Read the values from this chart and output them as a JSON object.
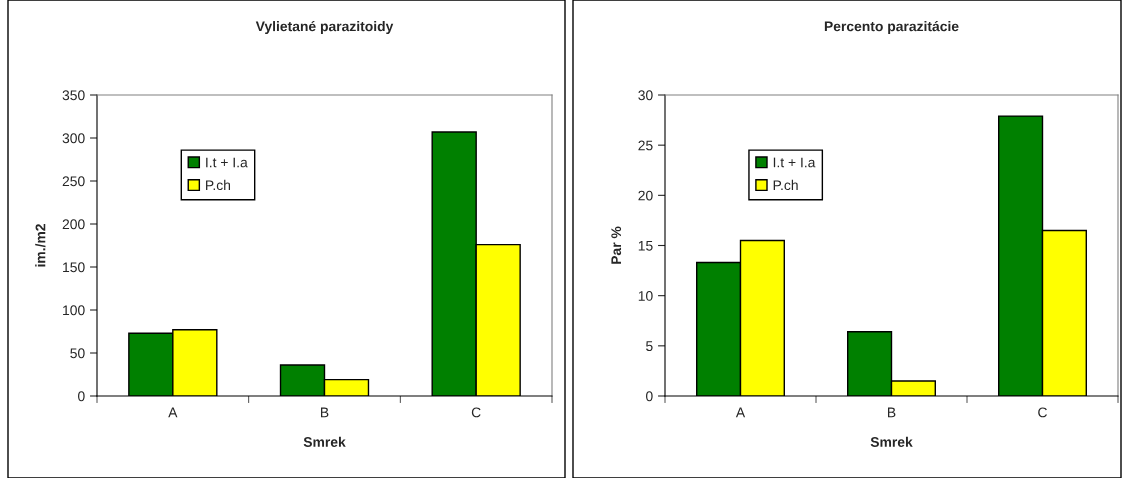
{
  "chart_data": [
    {
      "type": "bar",
      "title": "Vylietané parazitoidy",
      "xlabel": "Smrek",
      "ylabel": "im./m2",
      "categories": [
        "A",
        "B",
        "C"
      ],
      "series": [
        {
          "name": "I.t + I.a",
          "color": "#008000",
          "values": [
            73,
            36,
            307
          ]
        },
        {
          "name": "P.ch",
          "color": "#ffff00",
          "values": [
            77,
            19,
            176
          ]
        }
      ],
      "ylim": [
        0,
        350
      ],
      "yticks": [
        0,
        50,
        100,
        150,
        200,
        250,
        300,
        350
      ],
      "grid": false,
      "legend": "top left"
    },
    {
      "type": "bar",
      "title": "Percento parazitácie",
      "xlabel": "Smrek",
      "ylabel": "Par %",
      "categories": [
        "A",
        "B",
        "C"
      ],
      "series": [
        {
          "name": "I.t + I.a",
          "color": "#008000",
          "values": [
            13.3,
            6.4,
            27.9
          ]
        },
        {
          "name": "P.ch",
          "color": "#ffff00",
          "values": [
            15.5,
            1.5,
            16.5
          ]
        }
      ],
      "ylim": [
        0,
        30
      ],
      "yticks": [
        0,
        5,
        10,
        15,
        20,
        25,
        30
      ],
      "grid": false,
      "legend": "top left"
    }
  ]
}
